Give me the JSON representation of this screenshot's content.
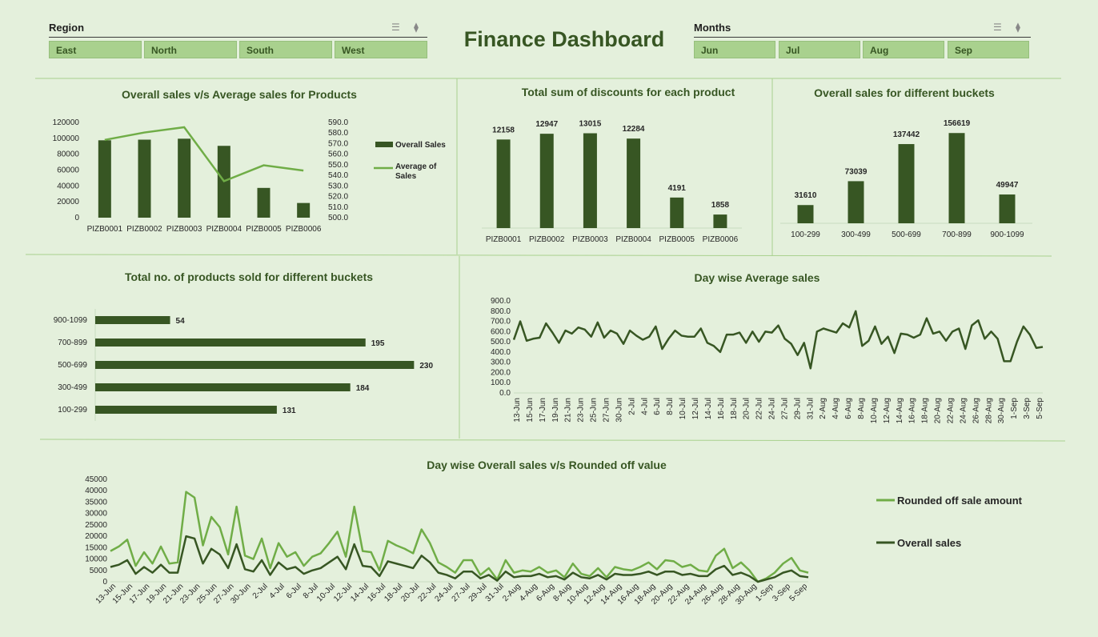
{
  "colors": {
    "dark": "#375623",
    "mid": "#70ad47",
    "bg": "#e4f0dc",
    "button": "#a9d18e"
  },
  "dashboard_title": "Finance Dashboard",
  "region_slicer": {
    "header": "Region",
    "items": [
      "East",
      "North",
      "South",
      "West"
    ],
    "icons": [
      "multi-select-icon",
      "clear-filter-icon"
    ]
  },
  "months_slicer": {
    "header": "Months",
    "items": [
      "Jun",
      "Jul",
      "Aug",
      "Sep"
    ],
    "icons": [
      "multi-select-icon",
      "clear-filter-icon"
    ]
  },
  "chart_data": [
    {
      "type": "bar",
      "title": "Overall sales v/s Average sales for Products",
      "categories": [
        "PIZB0001",
        "PIZB0002",
        "PIZB0003",
        "PIZB0004",
        "PIZB0005",
        "PIZB0006"
      ],
      "series": [
        {
          "name": "Overall Sales",
          "kind": "bar",
          "axis": "left",
          "values": [
            97500,
            98300,
            99500,
            90500,
            37500,
            18500
          ]
        },
        {
          "name": "Average of Sales",
          "kind": "line",
          "axis": "right",
          "values": [
            573.5,
            580.5,
            585.5,
            534.5,
            549.5,
            544.5
          ]
        }
      ],
      "y_ticks": [
        "0",
        "20000",
        "40000",
        "60000",
        "80000",
        "100000",
        "120000"
      ],
      "y2_ticks": [
        "500.0",
        "510.0",
        "520.0",
        "530.0",
        "540.0",
        "550.0",
        "560.0",
        "570.0",
        "580.0",
        "590.0"
      ],
      "ylim": [
        0,
        120000
      ],
      "y2lim": [
        500,
        590
      ],
      "legend": "right"
    },
    {
      "type": "bar",
      "title": "Total sum of discounts for each product",
      "categories": [
        "PIZB0001",
        "PIZB0002",
        "PIZB0003",
        "PIZB0004",
        "PIZB0005",
        "PIZB0006"
      ],
      "values": [
        12158,
        12947,
        13015,
        12284,
        4191,
        1858
      ],
      "labels": [
        "12158",
        "12947",
        "13015",
        "12284",
        "4191",
        "1858"
      ],
      "ylim": [
        0,
        14500
      ]
    },
    {
      "type": "bar",
      "title": "Overall sales for  different buckets",
      "categories": [
        "100-299",
        "300-499",
        "500-699",
        "700-899",
        "900-1099"
      ],
      "values": [
        31610,
        73039,
        137442,
        156619,
        49947
      ],
      "labels": [
        "31610",
        "73039",
        "137442",
        "156619",
        "49947"
      ],
      "ylim": [
        0,
        175000
      ]
    },
    {
      "type": "bar",
      "orientation": "horizontal",
      "title": "Total no. of products sold for different buckets",
      "categories": [
        "900-1099",
        "700-899",
        "500-699",
        "300-499",
        "100-299"
      ],
      "values": [
        54,
        195,
        230,
        184,
        131
      ],
      "labels": [
        "54",
        "195",
        "230",
        "184",
        "131"
      ],
      "xlim": [
        0,
        250
      ]
    },
    {
      "type": "line",
      "title": "Day wise Average sales",
      "x_tick_labels": [
        "13-Jun",
        "15-Jun",
        "17-Jun",
        "19-Jun",
        "21-Jun",
        "23-Jun",
        "25-Jun",
        "27-Jun",
        "30-Jun",
        "2-Jul",
        "4-Jul",
        "6-Jul",
        "8-Jul",
        "10-Jul",
        "12-Jul",
        "14-Jul",
        "16-Jul",
        "18-Jul",
        "20-Jul",
        "22-Jul",
        "24-Jul",
        "27-Jul",
        "29-Jul",
        "31-Jul",
        "2-Aug",
        "4-Aug",
        "6-Aug",
        "8-Aug",
        "10-Aug",
        "12-Aug",
        "14-Aug",
        "16-Aug",
        "18-Aug",
        "20-Aug",
        "22-Aug",
        "24-Aug",
        "26-Aug",
        "28-Aug",
        "30-Aug",
        "1-Sep",
        "3-Sep",
        "5-Sep"
      ],
      "values": [
        520,
        700,
        510,
        530,
        540,
        680,
        590,
        490,
        610,
        580,
        640,
        620,
        550,
        690,
        540,
        610,
        580,
        480,
        610,
        560,
        520,
        550,
        650,
        430,
        530,
        610,
        560,
        550,
        550,
        630,
        490,
        460,
        400,
        570,
        570,
        590,
        490,
        600,
        500,
        600,
        590,
        660,
        530,
        480,
        370,
        490,
        240,
        600,
        630,
        610,
        590,
        680,
        640,
        800,
        460,
        510,
        650,
        480,
        550,
        390,
        580,
        570,
        540,
        570,
        730,
        580,
        600,
        510,
        600,
        630,
        430,
        660,
        710,
        530,
        600,
        530,
        310,
        310,
        500,
        650,
        570,
        440,
        450
      ],
      "y_ticks": [
        "0.0",
        "100.0",
        "200.0",
        "300.0",
        "400.0",
        "500.0",
        "600.0",
        "700.0",
        "800.0",
        "900.0"
      ],
      "ylim": [
        0,
        900
      ]
    },
    {
      "type": "line",
      "title": "Day wise Overall sales v/s Rounded off value",
      "x_tick_labels": [
        "13-Jun",
        "15-Jun",
        "17-Jun",
        "19-Jun",
        "21-Jun",
        "23-Jun",
        "25-Jun",
        "27-Jun",
        "30-Jun",
        "2-Jul",
        "4-Jul",
        "6-Jul",
        "8-Jul",
        "10-Jul",
        "12-Jul",
        "14-Jul",
        "16-Jul",
        "18-Jul",
        "20-Jul",
        "22-Jul",
        "24-Jul",
        "27-Jul",
        "29-Jul",
        "31-Jul",
        "2-Aug",
        "4-Aug",
        "6-Aug",
        "8-Aug",
        "10-Aug",
        "12-Aug",
        "14-Aug",
        "16-Aug",
        "18-Aug",
        "20-Aug",
        "22-Aug",
        "24-Aug",
        "26-Aug",
        "28-Aug",
        "30-Aug",
        "1-Sep",
        "3-Sep",
        "5-Sep"
      ],
      "series": [
        {
          "name": "Rounded off sale amount",
          "values": [
            13500,
            15500,
            18500,
            7000,
            13000,
            8000,
            15500,
            8000,
            8500,
            39500,
            37000,
            16000,
            28500,
            24000,
            12000,
            33000,
            11500,
            10000,
            19000,
            6000,
            17000,
            11000,
            13000,
            7000,
            11000,
            12500,
            17000,
            22000,
            11000,
            33000,
            13500,
            13000,
            5000,
            18000,
            16000,
            14500,
            12500,
            23000,
            17000,
            8500,
            6500,
            4000,
            9500,
            9500,
            3000,
            6000,
            1000,
            9500,
            4000,
            5000,
            4500,
            6500,
            4000,
            5000,
            2000,
            8000,
            3500,
            2500,
            6000,
            2000,
            6500,
            5500,
            5000,
            6500,
            8500,
            5500,
            9500,
            9000,
            6500,
            7500,
            5000,
            4500,
            11500,
            14500,
            6000,
            8500,
            5000,
            0,
            1500,
            4000,
            8000,
            10500,
            5000,
            4000
          ],
          "color": "#70ad47"
        },
        {
          "name": "Overall sales",
          "values": [
            6500,
            7500,
            9500,
            3500,
            6500,
            4000,
            7500,
            4000,
            4000,
            20000,
            19000,
            8000,
            14500,
            12000,
            6000,
            16500,
            5500,
            4500,
            9500,
            3000,
            8500,
            5500,
            6500,
            3500,
            5000,
            6000,
            8500,
            11000,
            5500,
            16500,
            7000,
            6500,
            2500,
            9000,
            8000,
            7000,
            6000,
            11500,
            8500,
            4000,
            3000,
            1500,
            4500,
            4500,
            1500,
            3000,
            500,
            4500,
            2000,
            2500,
            2500,
            3500,
            2000,
            2500,
            1000,
            4000,
            2000,
            1500,
            3000,
            1000,
            3500,
            3000,
            3000,
            3500,
            4500,
            3000,
            4500,
            4500,
            3000,
            3500,
            2500,
            2500,
            5500,
            7000,
            3000,
            4000,
            2500,
            0,
            1000,
            2000,
            4000,
            5000,
            2500,
            2000
          ],
          "color": "#375623"
        }
      ],
      "y_ticks": [
        "0",
        "5000",
        "10000",
        "15000",
        "20000",
        "25000",
        "30000",
        "35000",
        "40000",
        "45000"
      ],
      "ylim": [
        0,
        45000
      ],
      "legend": "right"
    }
  ]
}
